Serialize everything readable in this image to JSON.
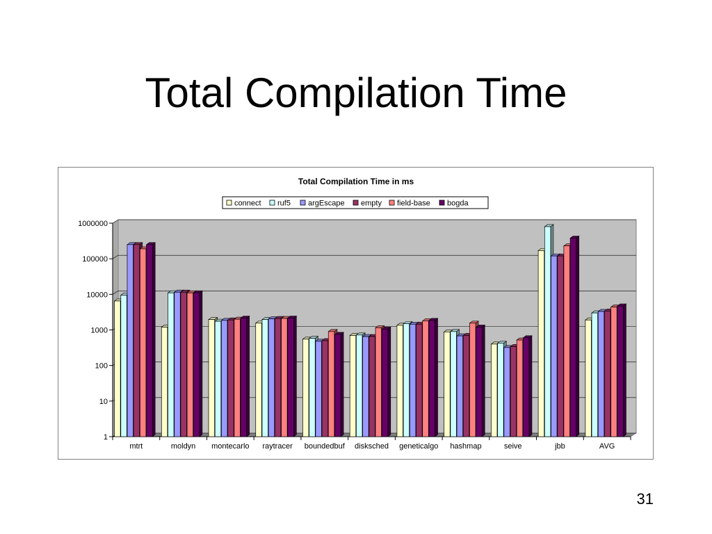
{
  "slide": {
    "title": "Total Compilation Time",
    "page_number": "31"
  },
  "chart_data": {
    "type": "bar",
    "title": "Total Compilation Time in ms",
    "xlabel": "",
    "ylabel": "",
    "y_scale": "log",
    "ylim": [
      1,
      1000000
    ],
    "y_ticks": [
      "1",
      "10",
      "100",
      "1000",
      "10000",
      "100000",
      "1000000"
    ],
    "grid": true,
    "legend_position": "top",
    "plot_background": "#c0c0c0",
    "categories": [
      "mtrt",
      "moldyn",
      "montecarlo",
      "raytracer",
      "boundedbuf",
      "disksched",
      "geneticalgo",
      "hashmap",
      "seive",
      "jbb",
      "AVG"
    ],
    "series": [
      {
        "name": "connect",
        "color": "#ffffcc",
        "values": [
          6500,
          1200,
          1950,
          1550,
          550,
          700,
          1350,
          880,
          400,
          170000,
          1900
        ]
      },
      {
        "name": "ruf5",
        "color": "#ccffff",
        "values": [
          9500,
          11000,
          1750,
          1950,
          580,
          720,
          1500,
          900,
          420,
          800000,
          3000
        ]
      },
      {
        "name": "argEscape",
        "color": "#9999ff",
        "values": [
          250000,
          11500,
          1850,
          2050,
          480,
          650,
          1450,
          680,
          320,
          120000,
          3300
        ]
      },
      {
        "name": "empty",
        "color": "#993366",
        "values": [
          250000,
          11500,
          1900,
          2100,
          500,
          650,
          1450,
          700,
          340,
          120000,
          3400
        ]
      },
      {
        "name": "field-base",
        "color": "#ff8080",
        "values": [
          190000,
          11000,
          2000,
          2100,
          900,
          1150,
          1800,
          1550,
          520,
          230000,
          4400
        ]
      },
      {
        "name": "bogda",
        "color": "#660066",
        "values": [
          250000,
          11000,
          2150,
          2150,
          750,
          1050,
          1850,
          1200,
          600,
          380000,
          4700
        ]
      }
    ]
  }
}
